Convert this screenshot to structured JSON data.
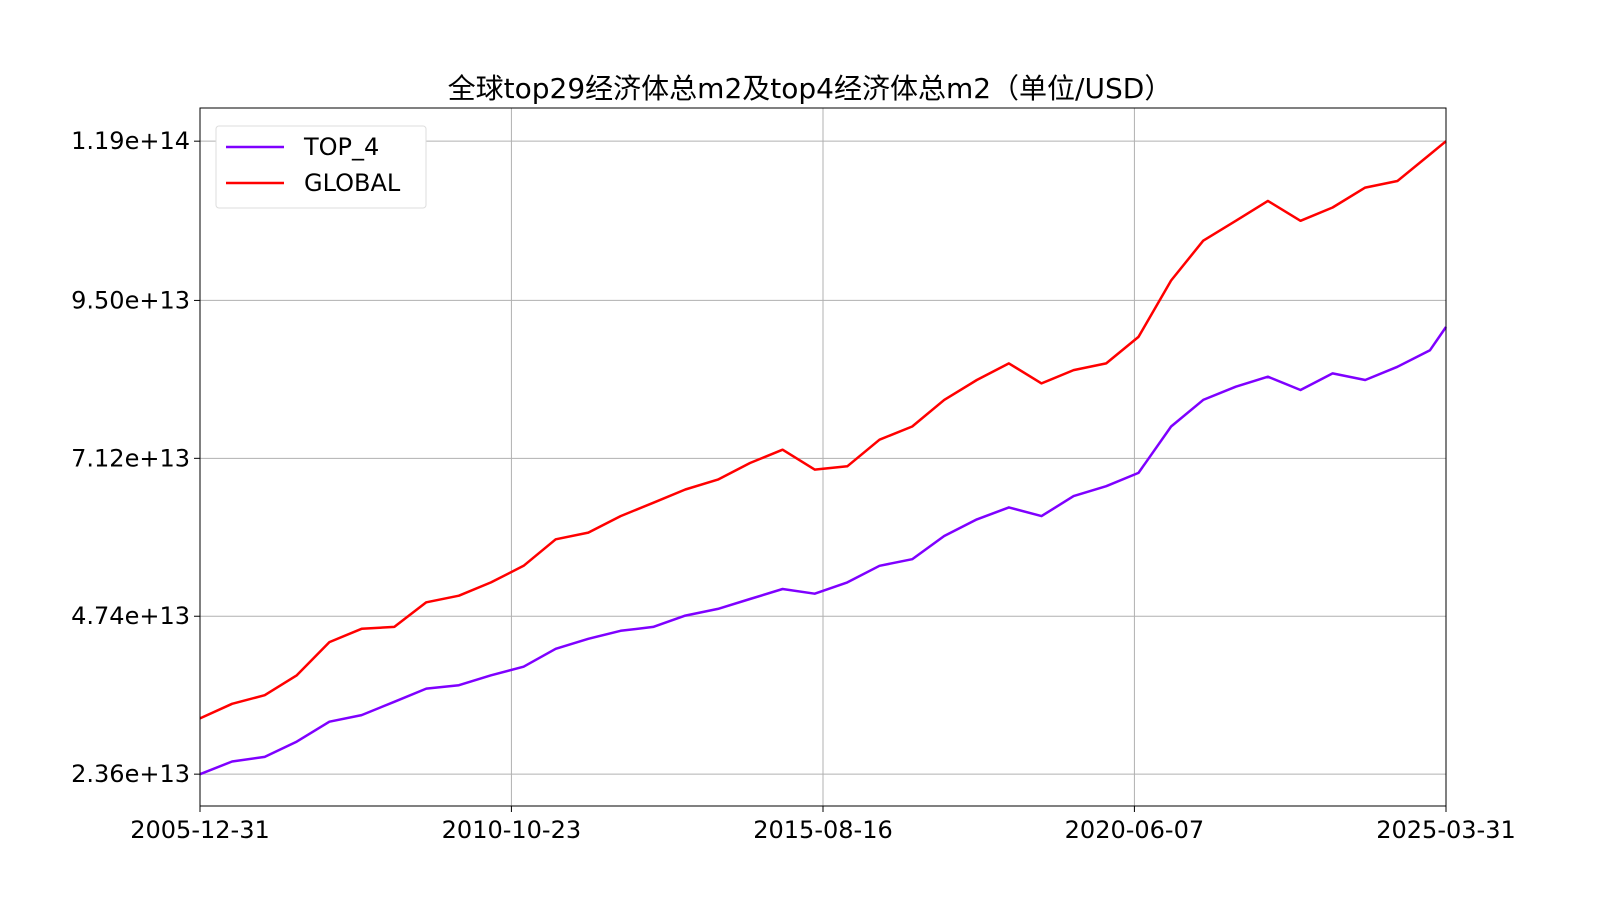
{
  "chart_data": {
    "type": "line",
    "title": "全球top29经济体总m2及top4经济体总m2（单位/USD）",
    "xlabel": "",
    "ylabel": "",
    "x_tick_labels": [
      "2005-12-31",
      "2010-10-23",
      "2015-08-16",
      "2020-06-07",
      "2025-03-31"
    ],
    "y_tick_labels": [
      "2.36e+13",
      "4.74e+13",
      "7.12e+13",
      "9.50e+13",
      "1.19e+14"
    ],
    "y_ticks": [
      23600000000000.0,
      47400000000000.0,
      71200000000000.0,
      95000000000000.0,
      119000000000000.0
    ],
    "xlim": [
      "2005-12-31",
      "2025-03-31"
    ],
    "ylim": [
      18800000000000.0,
      124000000000000.0
    ],
    "grid": true,
    "legend_position": "top-left",
    "x": [
      "2005-12-31",
      "2006-06-30",
      "2006-12-31",
      "2007-06-30",
      "2007-12-31",
      "2008-06-30",
      "2008-12-31",
      "2009-06-30",
      "2009-12-31",
      "2010-06-30",
      "2010-12-31",
      "2011-06-30",
      "2011-12-31",
      "2012-06-30",
      "2012-12-31",
      "2013-06-30",
      "2013-12-31",
      "2014-06-30",
      "2014-12-31",
      "2015-06-30",
      "2015-12-31",
      "2016-06-30",
      "2016-12-31",
      "2017-06-30",
      "2017-12-31",
      "2018-06-30",
      "2018-12-31",
      "2019-06-30",
      "2019-12-31",
      "2020-06-30",
      "2020-12-31",
      "2021-06-30",
      "2021-12-31",
      "2022-06-30",
      "2022-12-31",
      "2023-06-30",
      "2023-12-31",
      "2024-06-30",
      "2024-12-31",
      "2025-03-31"
    ],
    "series": [
      {
        "name": "TOP_4",
        "color": "#7f00ff",
        "values": [
          23600000000000.0,
          25500000000000.0,
          26200000000000.0,
          28500000000000.0,
          31500000000000.0,
          32500000000000.0,
          34500000000000.0,
          36500000000000.0,
          37000000000000.0,
          38500000000000.0,
          39800000000000.0,
          42500000000000.0,
          44000000000000.0,
          45200000000000.0,
          45800000000000.0,
          47500000000000.0,
          48500000000000.0,
          50000000000000.0,
          51500000000000.0,
          50800000000000.0,
          52500000000000.0,
          55000000000000.0,
          56000000000000.0,
          59500000000000.0,
          62000000000000.0,
          63800000000000.0,
          62500000000000.0,
          65500000000000.0,
          67000000000000.0,
          69000000000000.0,
          76000000000000.0,
          80000000000000.0,
          82000000000000.0,
          83500000000000.0,
          81500000000000.0,
          84000000000000.0,
          83000000000000.0,
          85000000000000.0,
          87500000000000.0,
          91000000000000.0
        ]
      },
      {
        "name": "GLOBAL",
        "color": "#ff0000",
        "values": [
          32000000000000.0,
          34200000000000.0,
          35500000000000.0,
          38500000000000.0,
          43500000000000.0,
          45500000000000.0,
          45800000000000.0,
          49500000000000.0,
          50500000000000.0,
          52500000000000.0,
          55000000000000.0,
          59000000000000.0,
          60000000000000.0,
          62500000000000.0,
          64500000000000.0,
          66500000000000.0,
          68000000000000.0,
          70500000000000.0,
          72500000000000.0,
          69500000000000.0,
          70000000000000.0,
          74000000000000.0,
          76000000000000.0,
          80000000000000.0,
          83000000000000.0,
          85500000000000.0,
          82500000000000.0,
          84500000000000.0,
          85500000000000.0,
          89500000000000.0,
          98000000000000.0,
          104000000000000.0,
          107000000000000.0,
          110000000000000.0,
          107000000000000.0,
          109000000000000.0,
          112000000000000.0,
          113000000000000.0,
          117000000000000.0,
          119000000000000.0
        ]
      }
    ]
  }
}
